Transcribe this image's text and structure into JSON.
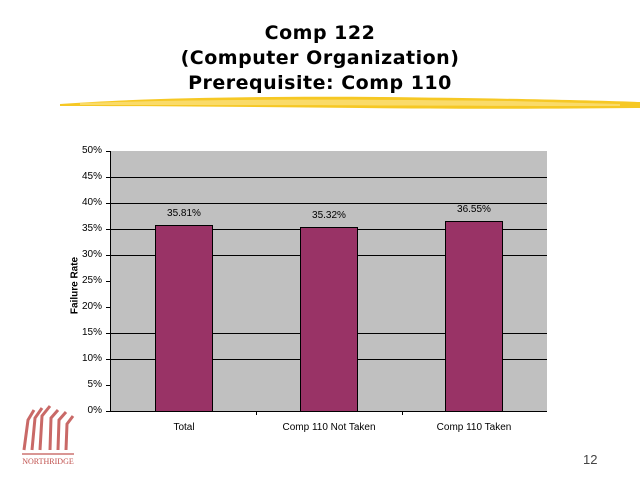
{
  "slide": {
    "title_lines": [
      "Comp 122",
      "(Computer Organization)",
      "Prerequisite: Comp 110"
    ],
    "page_number": "12",
    "logo_text": "NORTHRIDGE"
  },
  "chart_data": {
    "type": "bar",
    "title": "",
    "xlabel": "",
    "ylabel": "Failure Rate",
    "categories": [
      "Total",
      "Comp 110 Not Taken",
      "Comp 110 Taken"
    ],
    "values": [
      35.81,
      35.32,
      36.55
    ],
    "data_labels": [
      "35.81%",
      "35.32%",
      "36.55%"
    ],
    "ylim": [
      0,
      50
    ],
    "yticks": [
      "0%",
      "5%",
      "10%",
      "15%",
      "20%",
      "25%",
      "30%",
      "35%",
      "40%",
      "45%",
      "50%"
    ],
    "gridlines_at": [
      10,
      15,
      30,
      35,
      40,
      45
    ],
    "bar_color": "#993366",
    "plot_background": "#c0c0c0",
    "legend": "none"
  }
}
